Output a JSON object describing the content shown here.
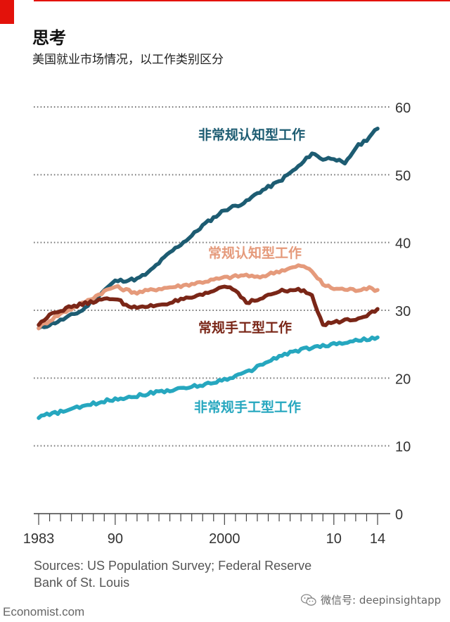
{
  "header": {
    "title": "思考",
    "subtitle": "美国就业市场情况，以工作类别区分"
  },
  "footer": {
    "sources": "Sources: US Population Survey; Federal Reserve Bank of St. Louis",
    "brand": "Economist.com",
    "wechat": "微信号: deepinsightapp"
  },
  "colors": {
    "accent": "#e3120b",
    "nonroutine_cognitive": "#1d5c72",
    "routine_cognitive": "#e59a7b",
    "routine_manual": "#7a2617",
    "nonroutine_manual": "#26a7bf"
  },
  "chart_data": {
    "type": "line",
    "xlim": [
      1983,
      2014
    ],
    "ylim": [
      0,
      60
    ],
    "x_ticks": [
      {
        "value": 1983,
        "label": "1983"
      },
      {
        "value": 1990,
        "label": "90"
      },
      {
        "value": 2000,
        "label": "2000"
      },
      {
        "value": 2010,
        "label": "10"
      },
      {
        "value": 2014,
        "label": "14"
      }
    ],
    "y_ticks": [
      0,
      10,
      20,
      30,
      40,
      50,
      60
    ],
    "grid": true,
    "y_axis_side": "right",
    "series": [
      {
        "name": "非常规认知型工作",
        "color": "#1d5c72",
        "points": [
          [
            1983,
            27.3
          ],
          [
            1985,
            28.5
          ],
          [
            1987,
            30.0
          ],
          [
            1988,
            31.5
          ],
          [
            1989,
            33.0
          ],
          [
            1990,
            34.3
          ],
          [
            1992,
            34.6
          ],
          [
            1993,
            35.5
          ],
          [
            1995,
            38.5
          ],
          [
            1997,
            41.0
          ],
          [
            1998,
            42.5
          ],
          [
            2000,
            44.8
          ],
          [
            2002,
            46.0
          ],
          [
            2003,
            47.3
          ],
          [
            2005,
            49.0
          ],
          [
            2007,
            51.5
          ],
          [
            2008,
            53.2
          ],
          [
            2009,
            52.3
          ],
          [
            2010,
            52.5
          ],
          [
            2011,
            51.5
          ],
          [
            2012,
            54.0
          ],
          [
            2013,
            55.2
          ],
          [
            2014,
            56.8
          ]
        ]
      },
      {
        "name": "常规认知型工作",
        "color": "#e59a7b",
        "points": [
          [
            1983,
            27.5
          ],
          [
            1985,
            29.5
          ],
          [
            1987,
            31.0
          ],
          [
            1989,
            32.8
          ],
          [
            1990,
            33.5
          ],
          [
            1991,
            33.0
          ],
          [
            1992,
            32.6
          ],
          [
            1994,
            33.2
          ],
          [
            1996,
            33.6
          ],
          [
            1998,
            34.2
          ],
          [
            2000,
            34.8
          ],
          [
            2002,
            35.2
          ],
          [
            2003,
            34.8
          ],
          [
            2005,
            35.8
          ],
          [
            2007,
            36.6
          ],
          [
            2008,
            35.8
          ],
          [
            2009,
            33.8
          ],
          [
            2010,
            33.2
          ],
          [
            2012,
            33.0
          ],
          [
            2013,
            33.3
          ],
          [
            2014,
            33.0
          ]
        ]
      },
      {
        "name": "常规手工型工作",
        "color": "#7a2617",
        "points": [
          [
            1983,
            27.8
          ],
          [
            1984,
            29.5
          ],
          [
            1986,
            30.5
          ],
          [
            1988,
            31.3
          ],
          [
            1990,
            31.8
          ],
          [
            1991,
            30.8
          ],
          [
            1992,
            30.3
          ],
          [
            1994,
            30.8
          ],
          [
            1996,
            31.5
          ],
          [
            1998,
            32.2
          ],
          [
            2000,
            33.6
          ],
          [
            2001,
            33.0
          ],
          [
            2002,
            31.2
          ],
          [
            2003,
            31.5
          ],
          [
            2005,
            32.8
          ],
          [
            2007,
            33.0
          ],
          [
            2008,
            32.3
          ],
          [
            2009,
            27.8
          ],
          [
            2010,
            28.2
          ],
          [
            2012,
            28.8
          ],
          [
            2013,
            29.3
          ],
          [
            2014,
            30.2
          ]
        ]
      },
      {
        "name": "非常规手工型工作",
        "color": "#26a7bf",
        "points": [
          [
            1983,
            14.3
          ],
          [
            1985,
            15.0
          ],
          [
            1987,
            15.8
          ],
          [
            1989,
            16.6
          ],
          [
            1990,
            16.9
          ],
          [
            1992,
            17.4
          ],
          [
            1994,
            18.0
          ],
          [
            1996,
            18.4
          ],
          [
            1998,
            19.0
          ],
          [
            2000,
            19.8
          ],
          [
            2002,
            20.8
          ],
          [
            2004,
            22.5
          ],
          [
            2006,
            23.8
          ],
          [
            2008,
            24.5
          ],
          [
            2010,
            25.0
          ],
          [
            2012,
            25.5
          ],
          [
            2014,
            26.0
          ]
        ]
      }
    ]
  }
}
